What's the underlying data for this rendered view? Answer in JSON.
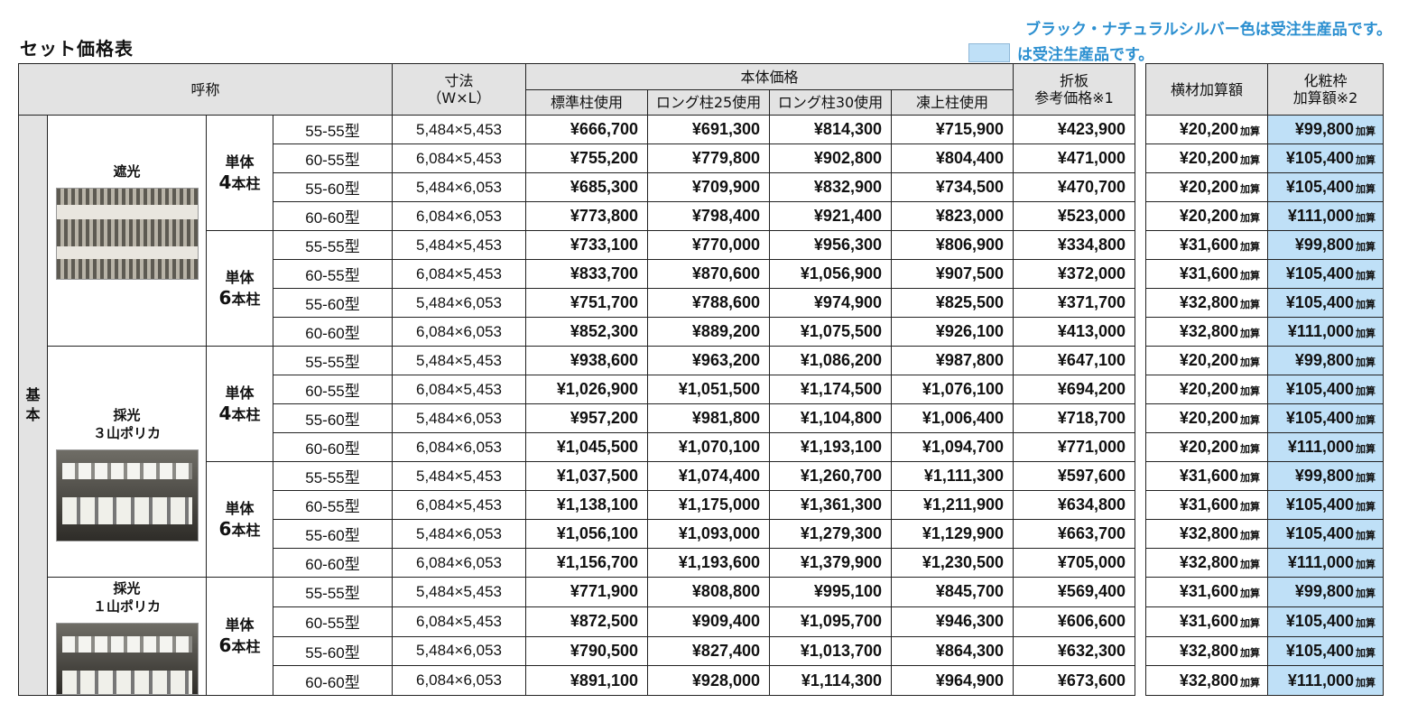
{
  "title": "セット価格表",
  "notes": {
    "line1": "ブラック・ナチュラルシルバー色は受注生産品です。",
    "line2": "は受注生産品です。",
    "swatch_color": "#bfe0f7"
  },
  "headers": {
    "name": "呼称",
    "size": "寸法",
    "size_sub": "（W×L）",
    "body_price": "本体価格",
    "standard": "標準柱使用",
    "long25": "ロング柱25使用",
    "long30": "ロング柱30使用",
    "frost": "凍上柱使用",
    "fold_line1": "折板",
    "fold_line2": "参考価格※1",
    "beam": "横材加算額",
    "decor_line1": "化粧枠",
    "decor_line2": "加算額※2"
  },
  "base_label": "基本",
  "add_suffix": "加算",
  "groups": [
    {
      "type_lines": [
        "遮光"
      ],
      "photo": "shade",
      "subgroups": [
        {
          "label": "単体",
          "posts": "4",
          "posts_unit": "本柱",
          "rows": [
            {
              "size": "55-55型",
              "dim": "5,484×5,453",
              "std": "¥666,700",
              "l25": "¥691,300",
              "l30": "¥814,300",
              "frost": "¥715,900",
              "fold": "¥423,900",
              "beam": "¥20,200",
              "decor": "¥99,800"
            },
            {
              "size": "60-55型",
              "dim": "6,084×5,453",
              "std": "¥755,200",
              "l25": "¥779,800",
              "l30": "¥902,800",
              "frost": "¥804,400",
              "fold": "¥471,000",
              "beam": "¥20,200",
              "decor": "¥105,400"
            },
            {
              "size": "55-60型",
              "dim": "5,484×6,053",
              "std": "¥685,300",
              "l25": "¥709,900",
              "l30": "¥832,900",
              "frost": "¥734,500",
              "fold": "¥470,700",
              "beam": "¥20,200",
              "decor": "¥105,400"
            },
            {
              "size": "60-60型",
              "dim": "6,084×6,053",
              "std": "¥773,800",
              "l25": "¥798,400",
              "l30": "¥921,400",
              "frost": "¥823,000",
              "fold": "¥523,000",
              "beam": "¥20,200",
              "decor": "¥111,000"
            }
          ]
        },
        {
          "label": "単体",
          "posts": "6",
          "posts_unit": "本柱",
          "rows": [
            {
              "size": "55-55型",
              "dim": "5,484×5,453",
              "std": "¥733,100",
              "l25": "¥770,000",
              "l30": "¥956,300",
              "frost": "¥806,900",
              "fold": "¥334,800",
              "beam": "¥31,600",
              "decor": "¥99,800"
            },
            {
              "size": "60-55型",
              "dim": "6,084×5,453",
              "std": "¥833,700",
              "l25": "¥870,600",
              "l30": "¥1,056,900",
              "frost": "¥907,500",
              "fold": "¥372,000",
              "beam": "¥31,600",
              "decor": "¥105,400"
            },
            {
              "size": "55-60型",
              "dim": "5,484×6,053",
              "std": "¥751,700",
              "l25": "¥788,600",
              "l30": "¥974,900",
              "frost": "¥825,500",
              "fold": "¥371,700",
              "beam": "¥32,800",
              "decor": "¥105,400"
            },
            {
              "size": "60-60型",
              "dim": "6,084×6,053",
              "std": "¥852,300",
              "l25": "¥889,200",
              "l30": "¥1,075,500",
              "frost": "¥926,100",
              "fold": "¥413,000",
              "beam": "¥32,800",
              "decor": "¥111,000"
            }
          ]
        }
      ]
    },
    {
      "type_lines": [
        "採光",
        "３山ポリカ"
      ],
      "photo": "poly",
      "subgroups": [
        {
          "label": "単体",
          "posts": "4",
          "posts_unit": "本柱",
          "rows": [
            {
              "size": "55-55型",
              "dim": "5,484×5,453",
              "std": "¥938,600",
              "l25": "¥963,200",
              "l30": "¥1,086,200",
              "frost": "¥987,800",
              "fold": "¥647,100",
              "beam": "¥20,200",
              "decor": "¥99,800"
            },
            {
              "size": "60-55型",
              "dim": "6,084×5,453",
              "std": "¥1,026,900",
              "l25": "¥1,051,500",
              "l30": "¥1,174,500",
              "frost": "¥1,076,100",
              "fold": "¥694,200",
              "beam": "¥20,200",
              "decor": "¥105,400"
            },
            {
              "size": "55-60型",
              "dim": "5,484×6,053",
              "std": "¥957,200",
              "l25": "¥981,800",
              "l30": "¥1,104,800",
              "frost": "¥1,006,400",
              "fold": "¥718,700",
              "beam": "¥20,200",
              "decor": "¥105,400"
            },
            {
              "size": "60-60型",
              "dim": "6,084×6,053",
              "std": "¥1,045,500",
              "l25": "¥1,070,100",
              "l30": "¥1,193,100",
              "frost": "¥1,094,700",
              "fold": "¥771,000",
              "beam": "¥20,200",
              "decor": "¥111,000"
            }
          ]
        },
        {
          "label": "単体",
          "posts": "6",
          "posts_unit": "本柱",
          "rows": [
            {
              "size": "55-55型",
              "dim": "5,484×5,453",
              "std": "¥1,037,500",
              "l25": "¥1,074,400",
              "l30": "¥1,260,700",
              "frost": "¥1,111,300",
              "fold": "¥597,600",
              "beam": "¥31,600",
              "decor": "¥99,800"
            },
            {
              "size": "60-55型",
              "dim": "6,084×5,453",
              "std": "¥1,138,100",
              "l25": "¥1,175,000",
              "l30": "¥1,361,300",
              "frost": "¥1,211,900",
              "fold": "¥634,800",
              "beam": "¥31,600",
              "decor": "¥105,400"
            },
            {
              "size": "55-60型",
              "dim": "5,484×6,053",
              "std": "¥1,056,100",
              "l25": "¥1,093,000",
              "l30": "¥1,279,300",
              "frost": "¥1,129,900",
              "fold": "¥663,700",
              "beam": "¥32,800",
              "decor": "¥105,400"
            },
            {
              "size": "60-60型",
              "dim": "6,084×6,053",
              "std": "¥1,156,700",
              "l25": "¥1,193,600",
              "l30": "¥1,379,900",
              "frost": "¥1,230,500",
              "fold": "¥705,000",
              "beam": "¥32,800",
              "decor": "¥111,000"
            }
          ]
        }
      ]
    },
    {
      "type_lines": [
        "採光",
        "１山ポリカ"
      ],
      "photo": "poly",
      "subgroups": [
        {
          "label": "単体",
          "posts": "6",
          "posts_unit": "本柱",
          "rows": [
            {
              "size": "55-55型",
              "dim": "5,484×5,453",
              "std": "¥771,900",
              "l25": "¥808,800",
              "l30": "¥995,100",
              "frost": "¥845,700",
              "fold": "¥569,400",
              "beam": "¥31,600",
              "decor": "¥99,800"
            },
            {
              "size": "60-55型",
              "dim": "6,084×5,453",
              "std": "¥872,500",
              "l25": "¥909,400",
              "l30": "¥1,095,700",
              "frost": "¥946,300",
              "fold": "¥606,600",
              "beam": "¥31,600",
              "decor": "¥105,400"
            },
            {
              "size": "55-60型",
              "dim": "5,484×6,053",
              "std": "¥790,500",
              "l25": "¥827,400",
              "l30": "¥1,013,700",
              "frost": "¥864,300",
              "fold": "¥632,300",
              "beam": "¥32,800",
              "decor": "¥105,400"
            },
            {
              "size": "60-60型",
              "dim": "6,084×6,053",
              "std": "¥891,100",
              "l25": "¥928,000",
              "l30": "¥1,114,300",
              "frost": "¥964,900",
              "fold": "¥673,600",
              "beam": "¥32,800",
              "decor": "¥111,000"
            }
          ]
        }
      ]
    }
  ]
}
